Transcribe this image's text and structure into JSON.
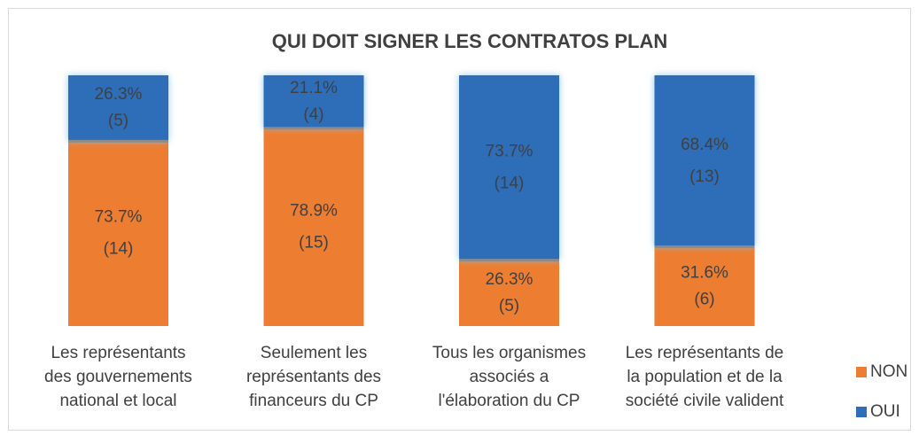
{
  "chart_data": {
    "type": "stacked_bar_100",
    "title": "QUI DOIT SIGNER LES CONTRATOS PLAN",
    "categories": [
      "Les représentants\ndes gouvernements\nnational et local",
      "Seulement les\nreprésentants des\nfinanceurs du CP",
      "Tous les organismes\nassociés a\nl'élaboration du CP",
      "Les représentants de\nla population et de la\nsociété civile valident"
    ],
    "series": [
      {
        "name": "NON",
        "color": "#ED7D31",
        "values": [
          73.7,
          78.9,
          26.3,
          31.6
        ],
        "value_labels": [
          "73.7%\n(14)",
          "78.9%\n(15)",
          "26.3%\n(5)",
          "31.6%\n(6)"
        ]
      },
      {
        "name": "OUI",
        "color": "#2E6DB8",
        "values": [
          26.3,
          21.1,
          73.7,
          68.4
        ],
        "value_labels": [
          "26.3%\n(5)",
          "21.1%\n(4)",
          "73.7%\n(14)",
          "68.4%\n(13)"
        ]
      }
    ],
    "ylim": [
      0,
      100
    ],
    "legend": "right"
  }
}
